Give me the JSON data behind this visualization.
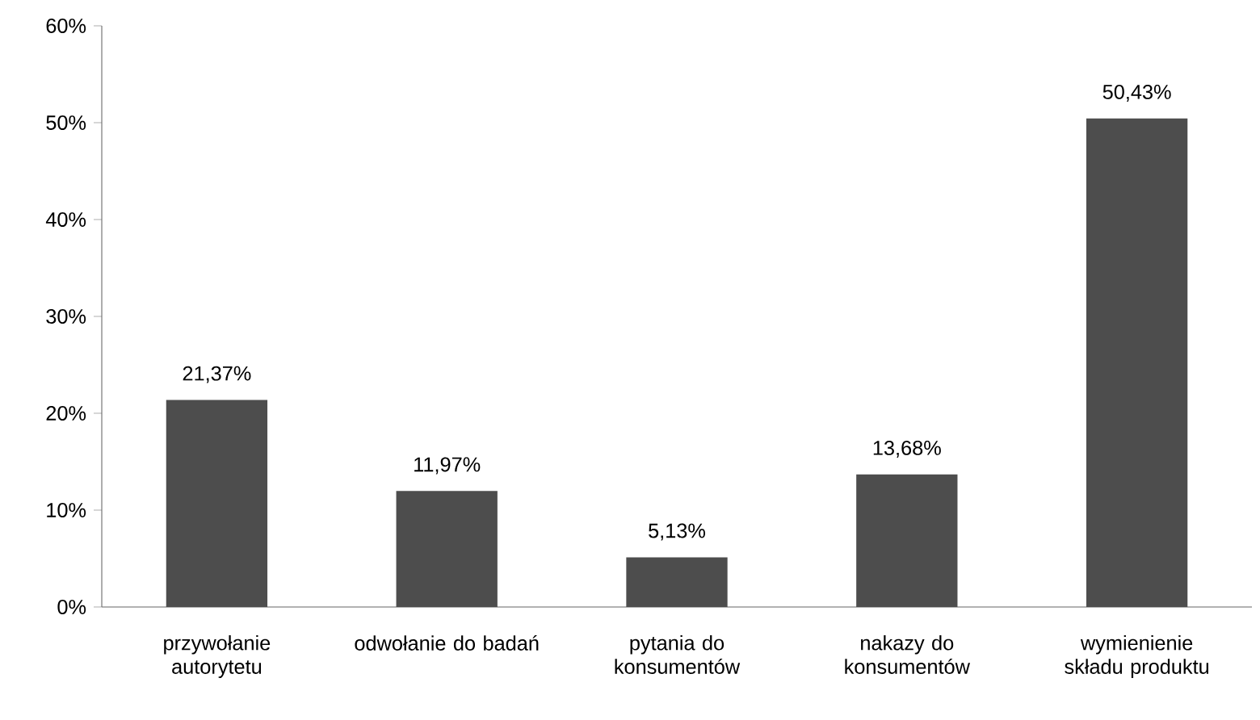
{
  "chart_data": {
    "type": "bar",
    "categories": [
      "przywołanie autorytetu",
      "odwołanie do badań",
      "pytania do konsumentów",
      "nakazy do konsumentów",
      "wymienienie składu produktu"
    ],
    "values": [
      21.37,
      11.97,
      5.13,
      13.68,
      50.43
    ],
    "value_labels": [
      "21,37%",
      "11,97%",
      "5,13%",
      "13,68%",
      "50,43%"
    ],
    "color": "#4d4d4d",
    "ylim": [
      0,
      60
    ],
    "yticks": [
      {
        "value": 0,
        "label": "0%"
      },
      {
        "value": 10,
        "label": "10%"
      },
      {
        "value": 20,
        "label": "20%"
      },
      {
        "value": 30,
        "label": "30%"
      },
      {
        "value": 40,
        "label": "40%"
      },
      {
        "value": 50,
        "label": "50%"
      },
      {
        "value": 60,
        "label": "60%"
      }
    ],
    "grid": false
  }
}
